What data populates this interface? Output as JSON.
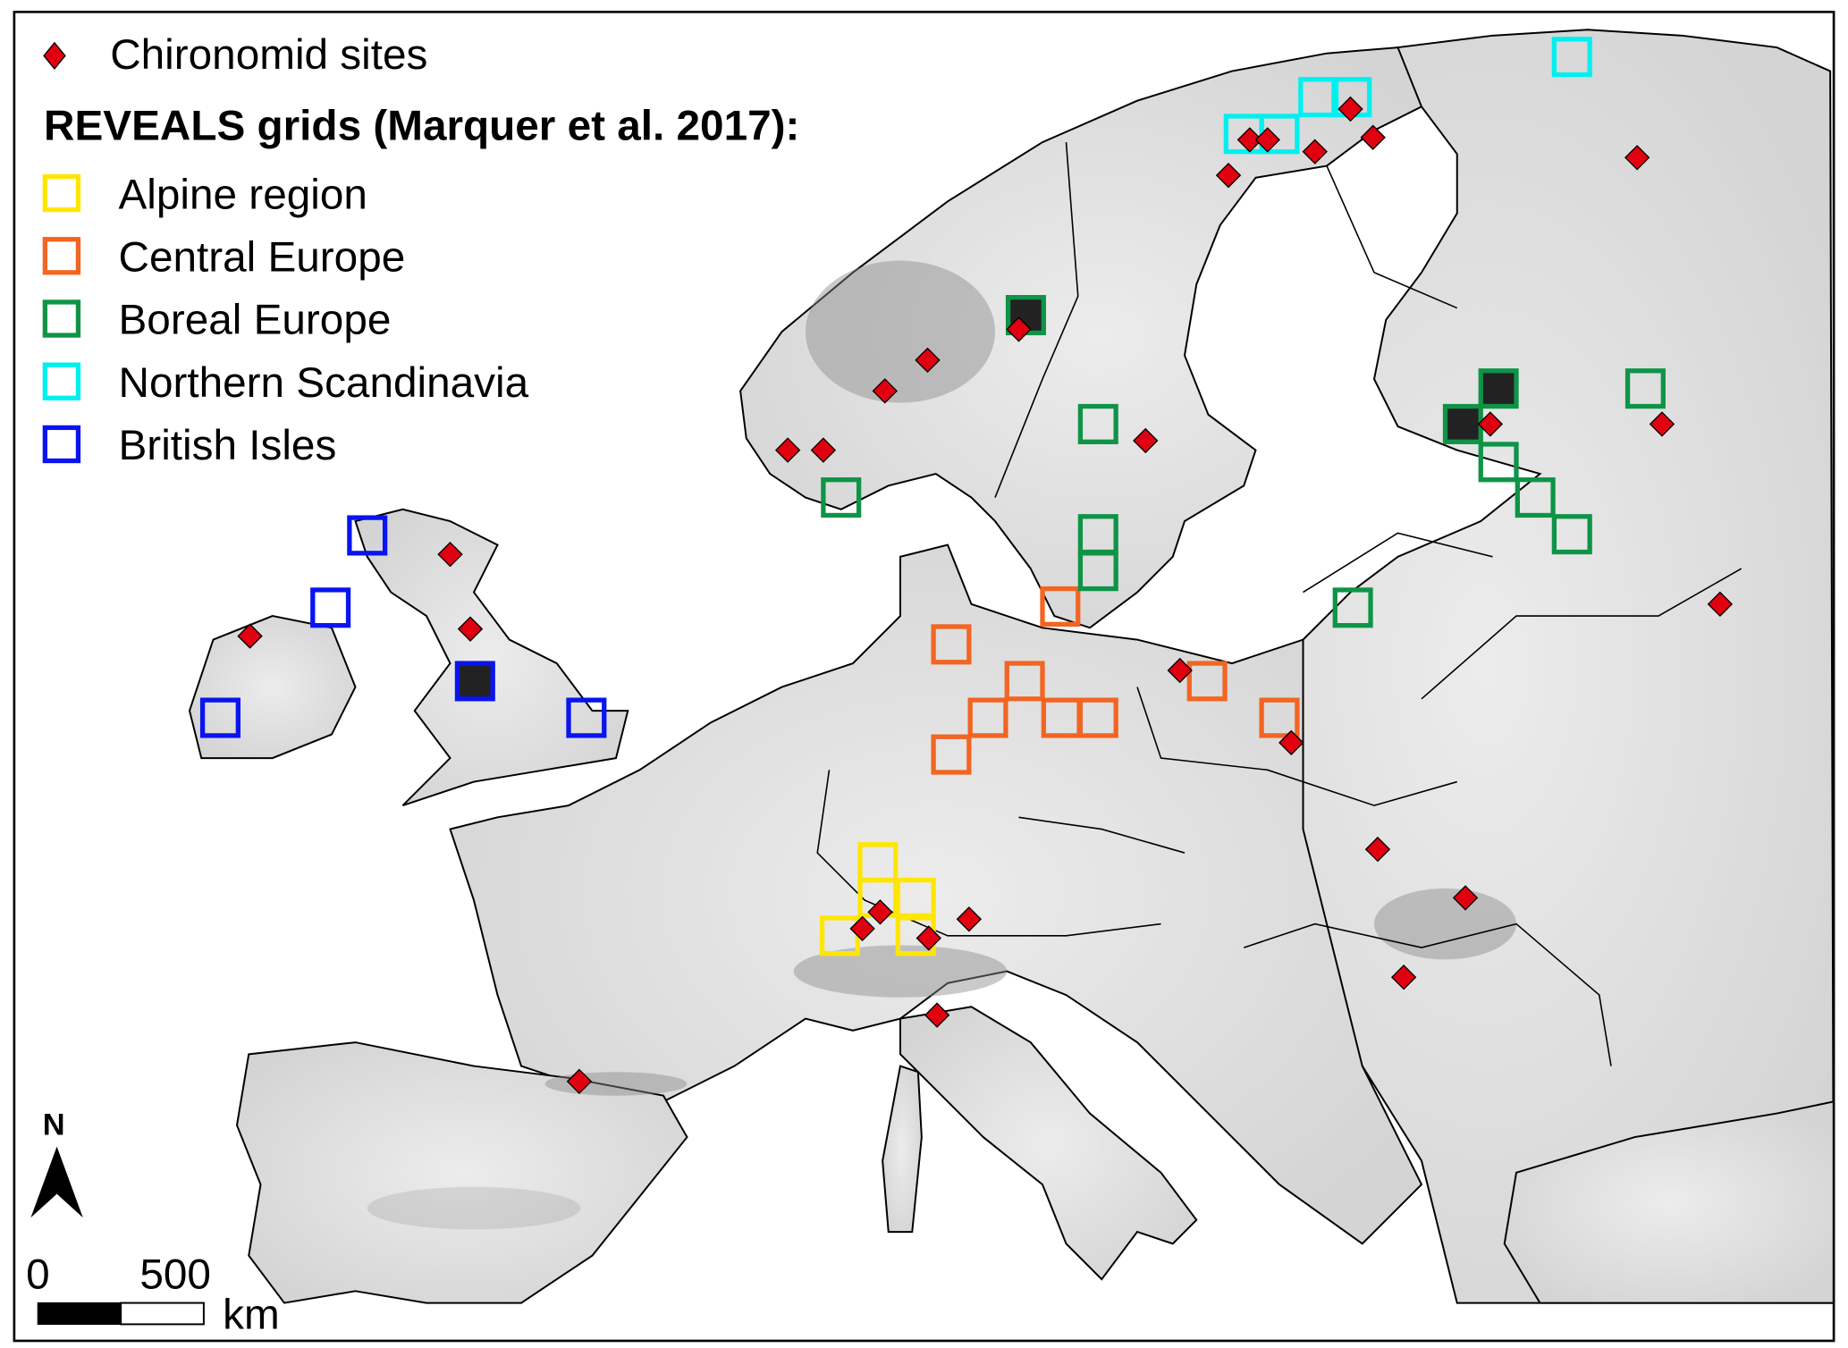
{
  "legend": {
    "sites_label": "Chironomid sites",
    "grids_title": "REVEALS grids (Marquer et al. 2017):",
    "regions": [
      {
        "label": "Alpine region",
        "color": "#ffe600"
      },
      {
        "label": "Central Europe",
        "color": "#f26522"
      },
      {
        "label": "Boreal Europe",
        "color": "#0f9447"
      },
      {
        "label": "Northern Scandinavia",
        "color": "#00f0f0"
      },
      {
        "label": "British Isles",
        "color": "#0a14f0"
      }
    ],
    "site_color": "#e00010"
  },
  "north_arrow": {
    "label": "N"
  },
  "scale_bar": {
    "start": "0",
    "end": "500",
    "unit": "km"
  },
  "colors": {
    "land": "#e2e2e2",
    "mountains": "#8a8a8a",
    "sea": "#ffffff",
    "borders": "#000000",
    "filled_grid": "#222222"
  }
}
